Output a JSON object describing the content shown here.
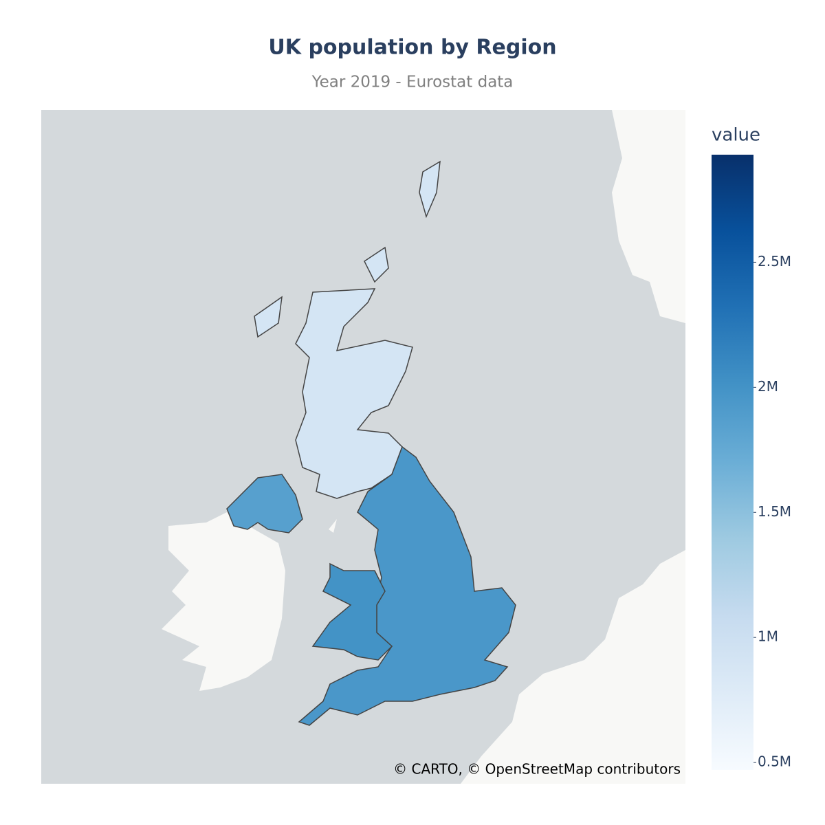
{
  "chart_data": {
    "type": "choropleth",
    "title": "UK population by Region",
    "subtitle": "Year 2019 - Eurostat data",
    "attribution": "© CARTO, © OpenStreetMap contributors",
    "values": [
      900000,
      1850000,
      1950000,
      2000000
    ],
    "colorbar": {
      "title": "value",
      "lim": [
        470000,
        2930000
      ],
      "ticks": [
        {
          "value": 500000,
          "label": "0.5M"
        },
        {
          "value": 1000000,
          "label": "1M"
        },
        {
          "value": 1500000,
          "label": "1.5M"
        },
        {
          "value": 2000000,
          "label": "2M"
        },
        {
          "value": 2500000,
          "label": "2.5M"
        }
      ],
      "colorscale": [
        "#f7fbff",
        "#deebf7",
        "#c6dbef",
        "#9ecae1",
        "#6baed6",
        "#4292c6",
        "#2171b5",
        "#08519c",
        "#08306b"
      ]
    }
  }
}
